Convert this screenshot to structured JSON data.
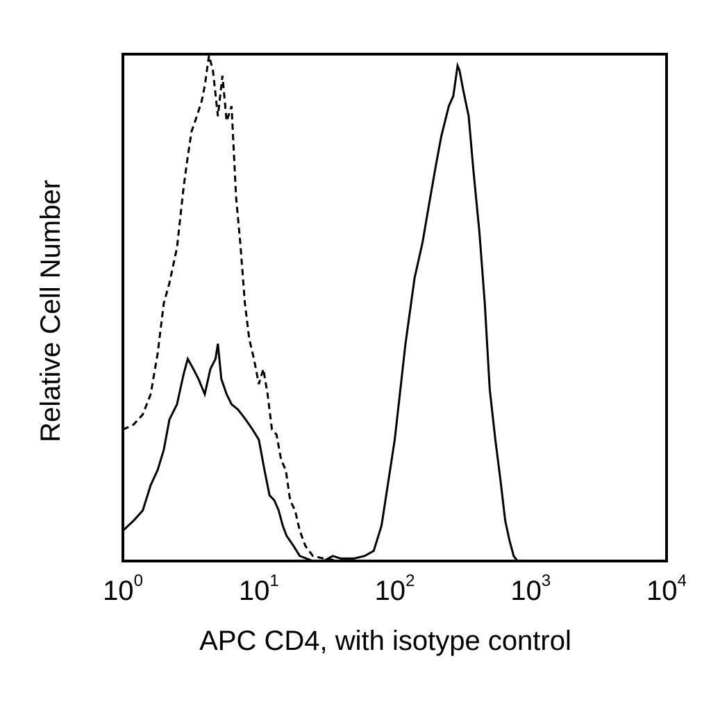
{
  "chart_data": {
    "type": "line",
    "title": "",
    "xlabel": "APC CD4, with isotype control",
    "ylabel": "Relative Cell Number",
    "x_scale": "log",
    "xlim": [
      1,
      10000
    ],
    "ylim": [
      0,
      1
    ],
    "grid": false,
    "legend": "none",
    "x_ticks": [
      {
        "value": 1,
        "base": "10",
        "exp": "0"
      },
      {
        "value": 10,
        "base": "10",
        "exp": "1"
      },
      {
        "value": 100,
        "base": "10",
        "exp": "2"
      },
      {
        "value": 1000,
        "base": "10",
        "exp": "3"
      },
      {
        "value": 10000,
        "base": "10",
        "exp": "4"
      }
    ],
    "series": [
      {
        "style": "dashed",
        "color": "#000000",
        "x": [
          1.0,
          1.2,
          1.4,
          1.6,
          1.8,
          2.0,
          2.2,
          2.5,
          2.8,
          3.0,
          3.2,
          3.5,
          3.8,
          4.0,
          4.3,
          4.6,
          5.0,
          5.4,
          5.8,
          6.3,
          6.8,
          7.3,
          7.9,
          8.5,
          9.2,
          10.0,
          10.8,
          11.6,
          12.5,
          13.5,
          14.6,
          15.8,
          17.0,
          18.5,
          20.0,
          22.0,
          25.0,
          30.0,
          40.0
        ],
        "y": [
          0.26,
          0.27,
          0.29,
          0.33,
          0.41,
          0.51,
          0.55,
          0.62,
          0.74,
          0.8,
          0.85,
          0.88,
          0.91,
          0.94,
          1.0,
          0.97,
          0.88,
          0.96,
          0.87,
          0.9,
          0.72,
          0.63,
          0.51,
          0.44,
          0.4,
          0.35,
          0.38,
          0.33,
          0.26,
          0.25,
          0.2,
          0.18,
          0.12,
          0.1,
          0.06,
          0.03,
          0.01,
          0.005,
          0.0
        ]
      },
      {
        "style": "solid",
        "color": "#000000",
        "x": [
          1.0,
          1.2,
          1.4,
          1.6,
          1.8,
          2.0,
          2.2,
          2.5,
          2.8,
          3.0,
          3.3,
          3.6,
          4.0,
          4.4,
          4.8,
          5.0,
          5.3,
          5.8,
          6.3,
          7.0,
          7.5,
          8.0,
          9.0,
          10.0,
          11.0,
          12.0,
          13.0,
          14.0,
          15.0,
          16.0,
          18.0,
          20.0,
          25.0,
          30.0,
          35.0,
          40.0,
          50.0,
          60.0,
          70.0,
          80.0,
          100.0,
          120.0,
          140.0,
          160.0,
          180.0,
          200.0,
          220.0,
          250.0,
          270.0,
          290.0,
          300.0,
          320.0,
          350.0,
          380.0,
          420.0,
          460.0,
          500.0,
          550.0,
          600.0,
          650.0,
          700.0,
          750.0,
          800.0
        ],
        "y": [
          0.06,
          0.08,
          0.1,
          0.15,
          0.18,
          0.22,
          0.28,
          0.31,
          0.37,
          0.4,
          0.38,
          0.36,
          0.33,
          0.38,
          0.4,
          0.43,
          0.36,
          0.33,
          0.31,
          0.3,
          0.29,
          0.28,
          0.26,
          0.24,
          0.18,
          0.13,
          0.12,
          0.1,
          0.07,
          0.05,
          0.03,
          0.01,
          0.0,
          0.0,
          0.01,
          0.005,
          0.005,
          0.01,
          0.02,
          0.07,
          0.24,
          0.43,
          0.56,
          0.63,
          0.71,
          0.78,
          0.84,
          0.9,
          0.92,
          0.98,
          0.97,
          0.93,
          0.88,
          0.77,
          0.65,
          0.51,
          0.34,
          0.24,
          0.16,
          0.08,
          0.04,
          0.01,
          0.0
        ]
      }
    ]
  }
}
